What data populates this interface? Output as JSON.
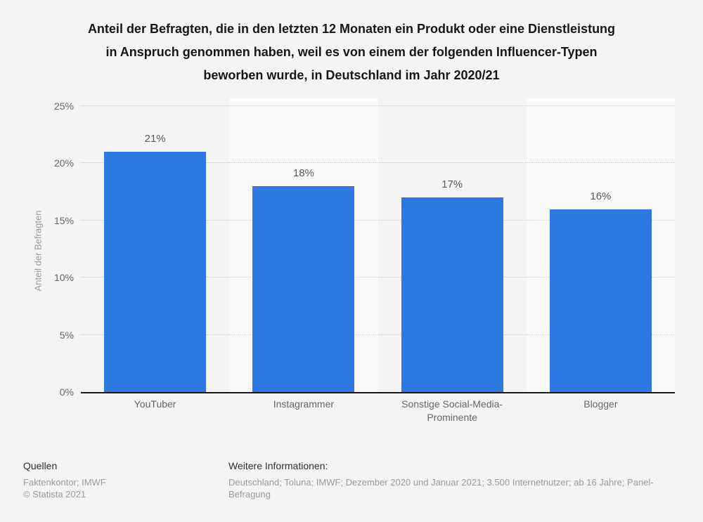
{
  "chart_data": {
    "type": "bar",
    "title": "Anteil der Befragten, die in den letzten 12 Monaten ein Produkt oder eine Dienstleistung in Anspruch genommen haben, weil es von einem der folgenden Influencer-Typen beworben wurde, in Deutschland im Jahr 2020/21",
    "categories": [
      "YouTuber",
      "Instagrammer",
      "Sonstige Social-Media-Prominente",
      "Blogger"
    ],
    "values": [
      21,
      18,
      17,
      16
    ],
    "value_labels": [
      "21%",
      "18%",
      "17%",
      "16%"
    ],
    "xlabel": "",
    "ylabel": "Anteil der Befragten",
    "ylim": [
      0,
      25
    ],
    "yticks": [
      0,
      5,
      10,
      15,
      20,
      25
    ],
    "ytick_labels": [
      "0%",
      "5%",
      "10%",
      "15%",
      "20%",
      "25%"
    ],
    "grid": "horizontal dotted",
    "legend": "none"
  },
  "colors": {
    "bar": "#2d78e2",
    "stripe_light": "#fafafa",
    "background": "#f4f4f4",
    "axis": "#1a1a1a",
    "gridline": "#c9c9c9"
  },
  "footer": {
    "sources_heading": "Quellen",
    "sources": "Faktenkontor; IMWF",
    "copyright": "© Statista 2021",
    "info_heading": "Weitere Informationen:",
    "info": "Deutschland; Toluna; IMWF; Dezember 2020 und Januar 2021; 3.500 Internetnutzer; ab 16 Jahre; Panel-Befragung"
  }
}
